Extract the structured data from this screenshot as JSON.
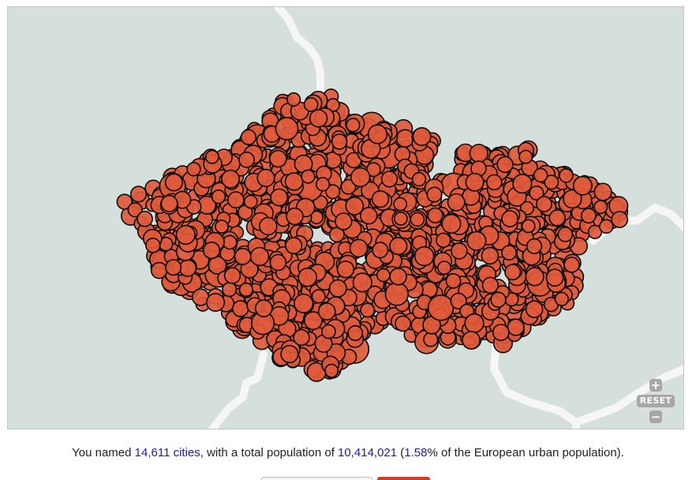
{
  "map": {
    "background_color": "#d5dfdb",
    "road_color": "#f6f6f4",
    "marker_fill": "#e05a3c",
    "marker_stroke": "#0b0b0b",
    "marker_count_estimate": 1600
  },
  "controls": {
    "zoom_in_label": "+",
    "reset_label": "RESET",
    "zoom_out_label": "−"
  },
  "summary": {
    "prefix": "You named ",
    "cities_count": "14,611",
    "cities_word": " cities",
    "middle": ", with a total population of ",
    "population": "10,414,021",
    "paren_open": " (",
    "percent": "1.58",
    "suffix": "% of the European urban population)."
  }
}
